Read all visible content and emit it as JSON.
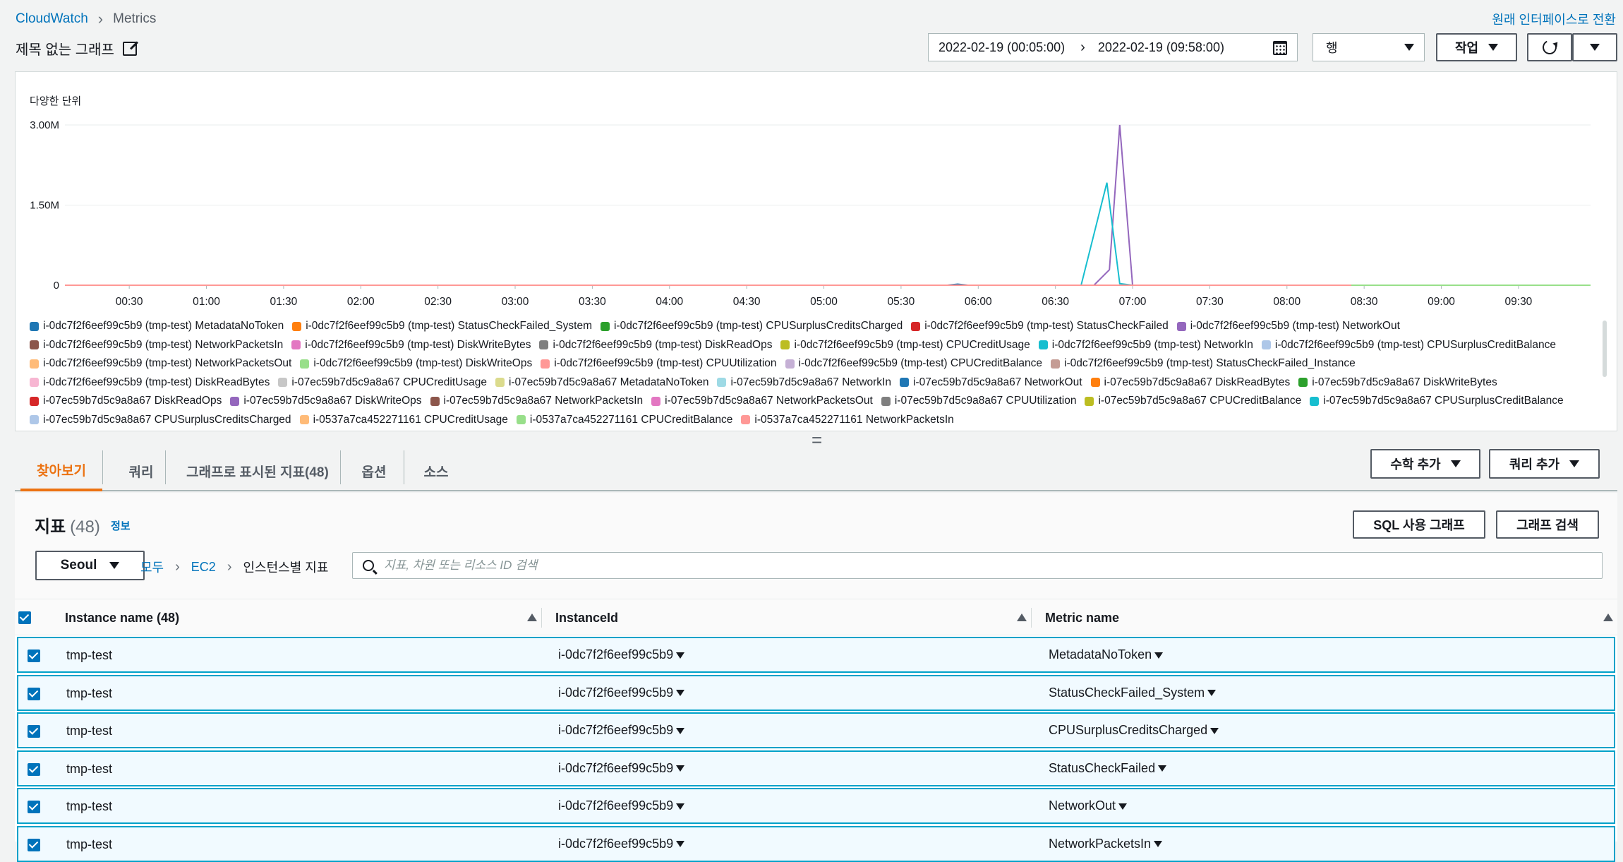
{
  "breadcrumb": {
    "root": "CloudWatch",
    "current": "Metrics"
  },
  "switch_link": "원래 인터페이스로 전환",
  "graph_title": "제목 없는 그래프",
  "date_range": {
    "start": "2022-02-19 (00:05:00)",
    "end": "2022-02-19 (09:58:00)"
  },
  "view_select": "행",
  "actions_label": "작업",
  "chart_data": {
    "type": "line",
    "ylabel": "다양한 단위",
    "yticks": [
      "0",
      "1.50M",
      "3.00M"
    ],
    "ylim": [
      0,
      3000000
    ],
    "xticks": [
      "00:30",
      "01:00",
      "01:30",
      "02:00",
      "02:30",
      "03:00",
      "03:30",
      "04:00",
      "04:30",
      "05:00",
      "05:30",
      "06:00",
      "06:30",
      "07:00",
      "07:30",
      "08:00",
      "08:30",
      "09:00",
      "09:30"
    ],
    "xlim_minutes": [
      5,
      598
    ],
    "grid": true,
    "series": [
      {
        "name": "i-0dc7f2f6eef99c5b9 (tmp-test) NetworkOut",
        "color": "#9467bd",
        "points": [
          [
            5,
            0
          ],
          [
            405,
            0
          ],
          [
            411,
            290000
          ],
          [
            415,
            3000000
          ],
          [
            420,
            0
          ],
          [
            598,
            0
          ]
        ]
      },
      {
        "name": "i-0dc7f2f6eef99c5b9 (tmp-test) NetworkIn",
        "color": "#17becf",
        "points": [
          [
            5,
            0
          ],
          [
            400,
            0
          ],
          [
            410,
            1920000
          ],
          [
            415,
            30000
          ],
          [
            420,
            0
          ],
          [
            598,
            0
          ]
        ]
      },
      {
        "name": "i-0dc7f2f6eef99c5b9 (tmp-test) MetadataNoToken",
        "color": "#1f77b4",
        "points": [
          [
            5,
            0
          ],
          [
            348,
            0
          ],
          [
            352,
            20000
          ],
          [
            356,
            0
          ],
          [
            598,
            0
          ]
        ]
      },
      {
        "name": "i-0537a7ca452271161 CPUCreditBalance",
        "color": "#98df8a",
        "points": [
          [
            5,
            0
          ],
          [
            598,
            0
          ]
        ]
      },
      {
        "name": "i-0537a7ca452271161 NetworkPacketsIn",
        "color": "#ff9896",
        "points": [
          [
            5,
            0
          ],
          [
            505,
            0
          ]
        ]
      }
    ]
  },
  "legend": [
    {
      "label": "i-0dc7f2f6eef99c5b9 (tmp-test) MetadataNoToken",
      "color": "#1f77b4"
    },
    {
      "label": "i-0dc7f2f6eef99c5b9 (tmp-test) StatusCheckFailed_System",
      "color": "#ff7f0e"
    },
    {
      "label": "i-0dc7f2f6eef99c5b9 (tmp-test) CPUSurplusCreditsCharged",
      "color": "#2ca02c"
    },
    {
      "label": "i-0dc7f2f6eef99c5b9 (tmp-test) StatusCheckFailed",
      "color": "#d62728"
    },
    {
      "label": "i-0dc7f2f6eef99c5b9 (tmp-test) NetworkOut",
      "color": "#9467bd"
    },
    {
      "label": "i-0dc7f2f6eef99c5b9 (tmp-test) NetworkPacketsIn",
      "color": "#8c564b"
    },
    {
      "label": "i-0dc7f2f6eef99c5b9 (tmp-test) DiskWriteBytes",
      "color": "#e377c2"
    },
    {
      "label": "i-0dc7f2f6eef99c5b9 (tmp-test) DiskReadOps",
      "color": "#7f7f7f"
    },
    {
      "label": "i-0dc7f2f6eef99c5b9 (tmp-test) CPUCreditUsage",
      "color": "#bcbd22"
    },
    {
      "label": "i-0dc7f2f6eef99c5b9 (tmp-test) NetworkIn",
      "color": "#17becf"
    },
    {
      "label": "i-0dc7f2f6eef99c5b9 (tmp-test) CPUSurplusCreditBalance",
      "color": "#aec7e8"
    },
    {
      "label": "i-0dc7f2f6eef99c5b9 (tmp-test) NetworkPacketsOut",
      "color": "#ffbb78"
    },
    {
      "label": "i-0dc7f2f6eef99c5b9 (tmp-test) DiskWriteOps",
      "color": "#98df8a"
    },
    {
      "label": "i-0dc7f2f6eef99c5b9 (tmp-test) CPUUtilization",
      "color": "#ff9896"
    },
    {
      "label": "i-0dc7f2f6eef99c5b9 (tmp-test) CPUCreditBalance",
      "color": "#c5b0d5"
    },
    {
      "label": "i-0dc7f2f6eef99c5b9 (tmp-test) StatusCheckFailed_Instance",
      "color": "#c49c94"
    },
    {
      "label": "i-0dc7f2f6eef99c5b9 (tmp-test) DiskReadBytes",
      "color": "#f7b6d2"
    },
    {
      "label": "i-07ec59b7d5c9a8a67 CPUCreditUsage",
      "color": "#c7c7c7"
    },
    {
      "label": "i-07ec59b7d5c9a8a67 MetadataNoToken",
      "color": "#dbdb8d"
    },
    {
      "label": "i-07ec59b7d5c9a8a67 NetworkIn",
      "color": "#9edae5"
    },
    {
      "label": "i-07ec59b7d5c9a8a67 NetworkOut",
      "color": "#1f77b4"
    },
    {
      "label": "i-07ec59b7d5c9a8a67 DiskReadBytes",
      "color": "#ff7f0e"
    },
    {
      "label": "i-07ec59b7d5c9a8a67 DiskWriteBytes",
      "color": "#2ca02c"
    },
    {
      "label": "i-07ec59b7d5c9a8a67 DiskReadOps",
      "color": "#d62728"
    },
    {
      "label": "i-07ec59b7d5c9a8a67 DiskWriteOps",
      "color": "#9467bd"
    },
    {
      "label": "i-07ec59b7d5c9a8a67 NetworkPacketsIn",
      "color": "#8c564b"
    },
    {
      "label": "i-07ec59b7d5c9a8a67 NetworkPacketsOut",
      "color": "#e377c2"
    },
    {
      "label": "i-07ec59b7d5c9a8a67 CPUUtilization",
      "color": "#7f7f7f"
    },
    {
      "label": "i-07ec59b7d5c9a8a67 CPUCreditBalance",
      "color": "#bcbd22"
    },
    {
      "label": "i-07ec59b7d5c9a8a67 CPUSurplusCreditBalance",
      "color": "#17becf"
    },
    {
      "label": "i-07ec59b7d5c9a8a67 CPUSurplusCreditsCharged",
      "color": "#aec7e8"
    },
    {
      "label": "i-0537a7ca452271161 CPUCreditUsage",
      "color": "#ffbb78"
    },
    {
      "label": "i-0537a7ca452271161 CPUCreditBalance",
      "color": "#98df8a"
    },
    {
      "label": "i-0537a7ca452271161 NetworkPacketsIn",
      "color": "#ff9896"
    }
  ],
  "tabs": [
    "찾아보기",
    "쿼리",
    "그래프로 표시된 지표(48)",
    "옵션",
    "소스"
  ],
  "add_math_label": "수학 추가",
  "add_query_label": "쿼리 추가",
  "metrics": {
    "title": "지표",
    "count": "(48)",
    "info": "정보",
    "sql_button": "SQL 사용 그래프",
    "search_button": "그래프 검색",
    "region": "Seoul",
    "crumbs": [
      "모두",
      "EC2",
      "인스턴스별 지표"
    ],
    "search_placeholder": "지표, 차원 또는 리소스 ID 검색",
    "columns": [
      "Instance name  (48)",
      "InstanceId",
      "Metric name"
    ],
    "rows": [
      {
        "name": "tmp-test",
        "id": "i-0dc7f2f6eef99c5b9",
        "metric": "MetadataNoToken"
      },
      {
        "name": "tmp-test",
        "id": "i-0dc7f2f6eef99c5b9",
        "metric": "StatusCheckFailed_System"
      },
      {
        "name": "tmp-test",
        "id": "i-0dc7f2f6eef99c5b9",
        "metric": "CPUSurplusCreditsCharged"
      },
      {
        "name": "tmp-test",
        "id": "i-0dc7f2f6eef99c5b9",
        "metric": "StatusCheckFailed"
      },
      {
        "name": "tmp-test",
        "id": "i-0dc7f2f6eef99c5b9",
        "metric": "NetworkOut"
      },
      {
        "name": "tmp-test",
        "id": "i-0dc7f2f6eef99c5b9",
        "metric": "NetworkPacketsIn"
      }
    ]
  }
}
